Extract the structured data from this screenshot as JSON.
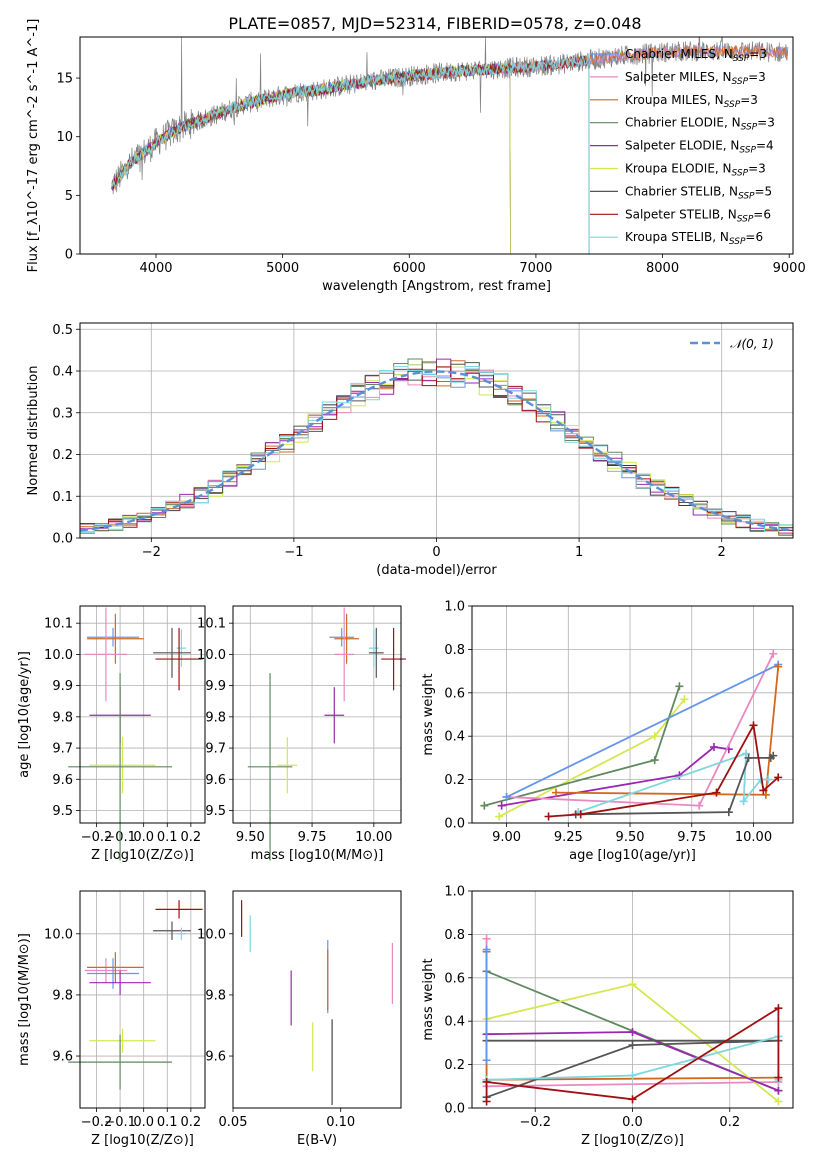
{
  "title": "PLATE=0857, MJD=52314, FIBERID=0578, z=0.048",
  "colors": {
    "Chabrier MILES": "#6495ed",
    "Salpeter MILES": "#e889c1",
    "Kroupa MILES": "#d2691e",
    "Chabrier ELODIE": "#5f8a5f",
    "Salpeter ELODIE": "#9b27b0",
    "Kroupa ELODIE": "#d4e84f",
    "Chabrier STELIB": "#555555",
    "Salpeter STELIB": "#a01010",
    "Kroupa STELIB": "#7fd6de",
    "data": "#808080",
    "normal": "#5b8fd8"
  },
  "chart_data": [
    {
      "id": "spectrum",
      "type": "line",
      "xlabel": "wavelength [Angstrom, rest frame]",
      "ylabel": "Flux [f_λ10^-17 erg cm^-2 s^-1 A^-1]",
      "xlim": [
        3400,
        9030
      ],
      "ylim": [
        0,
        18.5
      ],
      "xticks": [
        4000,
        5000,
        6000,
        7000,
        8000,
        9000
      ],
      "yticks": [
        0,
        5,
        10,
        15
      ],
      "legend_position": "right",
      "legend": [
        {
          "model": "Chabrier MILES",
          "nssp": "3"
        },
        {
          "model": "Salpeter MILES",
          "nssp": "3"
        },
        {
          "model": "Kroupa MILES",
          "nssp": "3"
        },
        {
          "model": "Chabrier ELODIE",
          "nssp": "3"
        },
        {
          "model": "Salpeter ELODIE",
          "nssp": "4"
        },
        {
          "model": "Kroupa ELODIE",
          "nssp": "3"
        },
        {
          "model": "Chabrier STELIB",
          "nssp": "5"
        },
        {
          "model": "Salpeter STELIB",
          "nssp": "6"
        },
        {
          "model": "Kroupa STELIB",
          "nssp": "6"
        }
      ],
      "continuum": {
        "x": [
          3650,
          3700,
          3800,
          3900,
          4000,
          4100,
          4200,
          4300,
          4500,
          4700,
          4900,
          5100,
          5300,
          5500,
          5800,
          6100,
          6400,
          6700,
          7000,
          7200,
          7400,
          7600,
          7800,
          8000,
          8300,
          8600,
          8900
        ],
        "y": [
          5.8,
          6.4,
          7.8,
          8.6,
          9.5,
          10.2,
          10.8,
          11.2,
          12.0,
          12.8,
          13.3,
          13.8,
          14.0,
          14.4,
          14.9,
          15.3,
          15.6,
          15.8,
          16.0,
          16.2,
          16.5,
          16.8,
          17.0,
          17.2,
          17.3,
          17.3,
          17.2
        ]
      },
      "model_cutoffs": {
        "Kroupa ELODIE": 6800,
        "Chabrier ELODIE": 6800,
        "Salpeter ELODIE": 6800,
        "Chabrier STELIB": 7420,
        "Salpeter STELIB": 7420,
        "Kroupa STELIB": 7420
      }
    },
    {
      "id": "residuals",
      "type": "histogram",
      "xlabel": "(data-model)/error",
      "ylabel": "Normed distribution",
      "xlim": [
        -2.5,
        2.5
      ],
      "ylim": [
        0,
        0.515
      ],
      "xticks": [
        -2,
        -1,
        0,
        1,
        2
      ],
      "yticks": [
        0.0,
        0.1,
        0.2,
        0.3,
        0.4,
        0.5
      ],
      "grid": true,
      "legend_position": "top-right",
      "legend_label": "𝒩(0, 1)",
      "bin_width": 0.1,
      "bin_start": -2.5
    },
    {
      "id": "age-vs-Z",
      "type": "errorbar",
      "xlabel": "Z [log10(Z/Z⊙)]",
      "ylabel": "age  [log10(age/yr)]",
      "xlim": [
        -0.27,
        0.26
      ],
      "ylim": [
        9.46,
        10.155
      ],
      "xticks": [
        -0.2,
        -0.1,
        0.0,
        0.1,
        0.2
      ],
      "yticks": [
        9.5,
        9.6,
        9.7,
        9.8,
        9.9,
        10.0,
        10.1
      ],
      "grid": true,
      "points": [
        {
          "model": "Chabrier MILES",
          "x": -0.13,
          "xerr": 0.11,
          "y": 10.055,
          "yerr": 0.03
        },
        {
          "model": "Kroupa MILES",
          "x": -0.12,
          "xerr": 0.12,
          "y": 10.05,
          "yerr": 0.08
        },
        {
          "model": "Salpeter MILES",
          "x": -0.16,
          "xerr": 0.09,
          "y": 10.0,
          "yerr": 0.15
        },
        {
          "model": "Kroupa STELIB",
          "x": 0.16,
          "xerr": 0.02,
          "y": 10.02,
          "yerr": 0.06
        },
        {
          "model": "Chabrier STELIB",
          "x": 0.12,
          "xerr": 0.08,
          "y": 10.005,
          "yerr": 0.08
        },
        {
          "model": "Salpeter STELIB",
          "x": 0.15,
          "xerr": 0.1,
          "y": 9.985,
          "yerr": 0.1
        },
        {
          "model": "Salpeter ELODIE",
          "x": -0.1,
          "xerr": 0.13,
          "y": 9.805,
          "yerr": 0.09
        },
        {
          "model": "Kroupa ELODIE",
          "x": -0.09,
          "xerr": 0.14,
          "y": 9.645,
          "yerr": 0.09
        },
        {
          "model": "Chabrier ELODIE",
          "x": -0.1,
          "xerr": 0.22,
          "y": 9.64,
          "yerr": 0.3
        }
      ]
    },
    {
      "id": "age-vs-mass",
      "type": "errorbar",
      "xlabel": "mass [log10(M/M⊙)]",
      "xlim": [
        9.43,
        10.11
      ],
      "ylim": [
        9.46,
        10.155
      ],
      "xticks": [
        9.5,
        9.75,
        10.0
      ],
      "xticklabels": [
        "9.50",
        "9.75",
        "10.00"
      ],
      "yticks": [
        9.5,
        9.6,
        9.7,
        9.8,
        9.9,
        10.0,
        10.1
      ],
      "grid": true,
      "points": [
        {
          "model": "Chabrier MILES",
          "x": 9.87,
          "xerr": 0.05,
          "y": 10.055,
          "yerr": 0.03
        },
        {
          "model": "Kroupa MILES",
          "x": 9.89,
          "xerr": 0.05,
          "y": 10.05,
          "yerr": 0.08
        },
        {
          "model": "Salpeter MILES",
          "x": 9.88,
          "xerr": 0.04,
          "y": 10.0,
          "yerr": 0.15
        },
        {
          "model": "Kroupa STELIB",
          "x": 10.0,
          "xerr": 0.02,
          "y": 10.02,
          "yerr": 0.06
        },
        {
          "model": "Chabrier STELIB",
          "x": 10.01,
          "xerr": 0.03,
          "y": 10.005,
          "yerr": 0.08
        },
        {
          "model": "Salpeter STELIB",
          "x": 10.08,
          "xerr": 0.05,
          "y": 9.985,
          "yerr": 0.1
        },
        {
          "model": "Salpeter ELODIE",
          "x": 9.84,
          "xerr": 0.04,
          "y": 9.805,
          "yerr": 0.09
        },
        {
          "model": "Kroupa ELODIE",
          "x": 9.65,
          "xerr": 0.04,
          "y": 9.645,
          "yerr": 0.09
        },
        {
          "model": "Chabrier ELODIE",
          "x": 9.58,
          "xerr": 0.09,
          "y": 9.64,
          "yerr": 0.3
        }
      ]
    },
    {
      "id": "weight-vs-age",
      "type": "line",
      "xlabel": "age  [log10(age/yr)]",
      "ylabel": "mass weight",
      "xlim": [
        8.86,
        10.16
      ],
      "ylim": [
        0,
        1.0
      ],
      "xticks": [
        9.0,
        9.25,
        9.5,
        9.75,
        10.0
      ],
      "xticklabels": [
        "9.00",
        "9.25",
        "9.50",
        "9.75",
        "10.00"
      ],
      "yticks": [
        0.0,
        0.2,
        0.4,
        0.6,
        0.8,
        1.0
      ],
      "grid": true,
      "series": [
        {
          "model": "Kroupa ELODIE",
          "x": [
            8.97,
            9.6,
            9.72
          ],
          "y": [
            0.03,
            0.4,
            0.57
          ]
        },
        {
          "model": "Chabrier ELODIE",
          "x": [
            8.91,
            9.6,
            9.7
          ],
          "y": [
            0.08,
            0.29,
            0.63
          ]
        },
        {
          "model": "Salpeter ELODIE",
          "x": [
            8.98,
            9.7,
            9.84,
            9.9
          ],
          "y": [
            0.08,
            0.22,
            0.35,
            0.34
          ]
        },
        {
          "model": "Salpeter MILES",
          "x": [
            9.0,
            9.78,
            10.08
          ],
          "y": [
            0.12,
            0.08,
            0.78
          ]
        },
        {
          "model": "Chabrier MILES",
          "x": [
            9.0,
            10.1
          ],
          "y": [
            0.12,
            0.73
          ]
        },
        {
          "model": "Kroupa MILES",
          "x": [
            9.2,
            10.05,
            10.1
          ],
          "y": [
            0.14,
            0.13,
            0.72
          ]
        },
        {
          "model": "Kroupa STELIB",
          "x": [
            9.29,
            9.97,
            9.96,
            10.03,
            10.06
          ],
          "y": [
            0.05,
            0.32,
            0.1,
            0.2,
            0.2
          ]
        },
        {
          "model": "Chabrier STELIB",
          "x": [
            9.28,
            9.9,
            9.98,
            10.07,
            10.08
          ],
          "y": [
            0.04,
            0.05,
            0.3,
            0.3,
            0.31
          ]
        },
        {
          "model": "Salpeter STELIB",
          "x": [
            9.17,
            9.3,
            9.85,
            10.0,
            10.04,
            10.1
          ],
          "y": [
            0.03,
            0.04,
            0.14,
            0.45,
            0.15,
            0.21
          ]
        }
      ]
    },
    {
      "id": "mass-vs-Z",
      "type": "errorbar",
      "xlabel": "Z [log10(Z/Z⊙)]",
      "ylabel": "mass [log10(M/M⊙)]",
      "xlim": [
        -0.27,
        0.26
      ],
      "ylim": [
        9.43,
        10.14
      ],
      "xticks": [
        -0.2,
        -0.1,
        0.0,
        0.1,
        0.2
      ],
      "yticks": [
        9.6,
        9.8,
        10.0
      ],
      "grid": true,
      "points": [
        {
          "model": "Salpeter STELIB",
          "x": 0.15,
          "xerr": 0.1,
          "y": 10.08,
          "yerr": 0.03
        },
        {
          "model": "Chabrier STELIB",
          "x": 0.12,
          "xerr": 0.08,
          "y": 10.01,
          "yerr": 0.03
        },
        {
          "model": "Kroupa STELIB",
          "x": 0.16,
          "xerr": 0.02,
          "y": 10.0,
          "yerr": 0.02
        },
        {
          "model": "Salpeter MILES",
          "x": -0.16,
          "xerr": 0.09,
          "y": 9.88,
          "yerr": 0.04
        },
        {
          "model": "Chabrier MILES",
          "x": -0.13,
          "xerr": 0.11,
          "y": 9.87,
          "yerr": 0.05
        },
        {
          "model": "Kroupa MILES",
          "x": -0.12,
          "xerr": 0.12,
          "y": 9.89,
          "yerr": 0.05
        },
        {
          "model": "Salpeter ELODIE",
          "x": -0.1,
          "xerr": 0.13,
          "y": 9.84,
          "yerr": 0.04
        },
        {
          "model": "Kroupa ELODIE",
          "x": -0.09,
          "xerr": 0.14,
          "y": 9.65,
          "yerr": 0.04
        },
        {
          "model": "Chabrier ELODIE",
          "x": -0.1,
          "xerr": 0.22,
          "y": 9.58,
          "yerr": 0.09
        }
      ]
    },
    {
      "id": "mass-vs-ebv",
      "type": "errorbar",
      "xlabel": "E(B-V)",
      "xlim": [
        0.05,
        0.128
      ],
      "ylim": [
        9.43,
        10.14
      ],
      "xticks": [
        0.05,
        0.1
      ],
      "xticklabels": [
        "0.05",
        "0.10"
      ],
      "yticks": [
        9.6,
        9.8,
        10.0
      ],
      "points": [
        {
          "model": "Salpeter STELIB",
          "x": 0.054,
          "y": 10.05,
          "yerr": 0.06
        },
        {
          "model": "Kroupa STELIB",
          "x": 0.058,
          "y": 10.0,
          "yerr": 0.06
        },
        {
          "model": "Salpeter ELODIE",
          "x": 0.077,
          "y": 9.79,
          "yerr": 0.09
        },
        {
          "model": "Kroupa ELODIE",
          "x": 0.087,
          "y": 9.63,
          "yerr": 0.08
        },
        {
          "model": "Chabrier MILES",
          "x": 0.094,
          "y": 9.86,
          "yerr": 0.12
        },
        {
          "model": "Kroupa MILES",
          "x": 0.094,
          "y": 9.85,
          "yerr": 0.1
        },
        {
          "model": "Chabrier ELODIE",
          "x": 0.096,
          "y": 9.58,
          "yerr": 0.14
        },
        {
          "model": "Chabrier STELIB",
          "x": 0.096,
          "y": 9.58,
          "yerr": 0.14
        },
        {
          "model": "Salpeter MILES",
          "x": 0.124,
          "y": 9.87,
          "yerr": 0.1
        }
      ]
    },
    {
      "id": "weight-vs-Z",
      "type": "line",
      "xlabel": "Z [log10(Z/Z⊙)]",
      "ylabel": "mass weight",
      "xlim": [
        -0.33,
        0.33
      ],
      "ylim": [
        0,
        1.0
      ],
      "xticks": [
        -0.2,
        0.0,
        0.2
      ],
      "xticklabels": [
        "−0.2",
        "0.0",
        "0.2"
      ],
      "yticks": [
        0.0,
        0.2,
        0.4,
        0.6,
        0.8,
        1.0
      ],
      "grid": true,
      "series": [
        {
          "model": "Salpeter MILES",
          "x": [
            -0.3,
            -0.3,
            0.3
          ],
          "y": [
            0.78,
            0.1,
            0.12
          ]
        },
        {
          "model": "Kroupa MILES",
          "x": [
            -0.3,
            -0.3,
            0.3
          ],
          "y": [
            0.72,
            0.13,
            0.14
          ]
        },
        {
          "model": "Chabrier ELODIE",
          "x": [
            -0.3,
            0.3
          ],
          "y": [
            0.63,
            0.08
          ]
        },
        {
          "model": "Kroupa ELODIE",
          "x": [
            -0.3,
            0.0,
            0.3
          ],
          "y": [
            0.41,
            0.57,
            0.03
          ]
        },
        {
          "model": "Salpeter ELODIE",
          "x": [
            -0.3,
            0.0,
            0.3
          ],
          "y": [
            0.34,
            0.35,
            0.08
          ]
        },
        {
          "model": "Chabrier STELIB",
          "x": [
            -0.3,
            0.0,
            0.3,
            -0.3
          ],
          "y": [
            0.05,
            0.29,
            0.31,
            0.31
          ]
        },
        {
          "model": "Kroupa STELIB",
          "x": [
            -0.3,
            0.0,
            0.3,
            0.3
          ],
          "y": [
            0.13,
            0.15,
            0.33,
            0.13
          ]
        },
        {
          "model": "Chabrier MILES",
          "x": [
            -0.3,
            -0.3
          ],
          "y": [
            0.73,
            0.22
          ]
        },
        {
          "model": "Salpeter STELIB",
          "x": [
            -0.3,
            -0.3,
            0.0,
            0.3,
            0.3
          ],
          "y": [
            0.03,
            0.12,
            0.04,
            0.46,
            0.14
          ]
        }
      ]
    }
  ]
}
